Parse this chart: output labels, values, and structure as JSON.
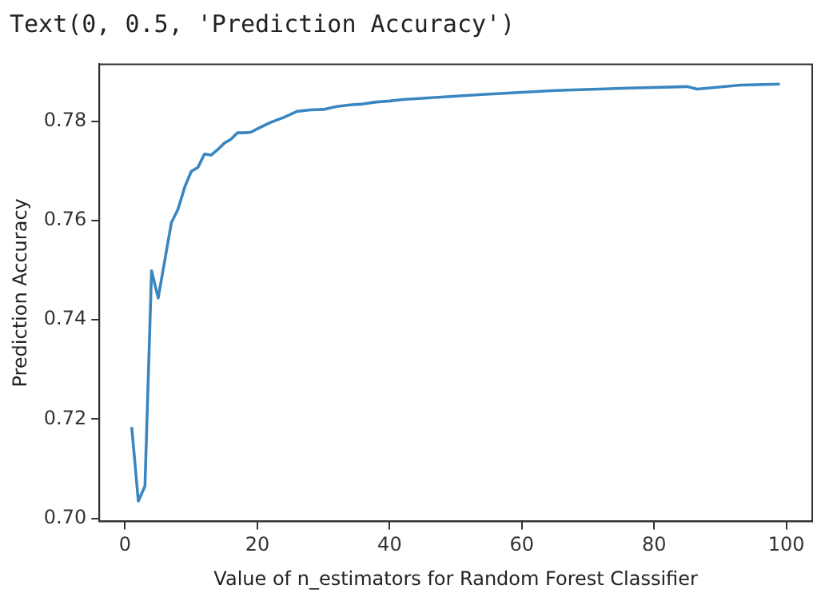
{
  "chart_data": {
    "type": "line",
    "xlabel": "Value of n_estimators for Random Forest Classifier",
    "ylabel": "Prediction Accuracy",
    "annotations": [
      "Text(0, 0.5, 'Prediction Accuracy')"
    ],
    "series": [
      {
        "color": "#3a86c0",
        "x": [
          1,
          2,
          3,
          4,
          5,
          6,
          7,
          8,
          9,
          10,
          11,
          12,
          13,
          14,
          15,
          16,
          17,
          18,
          19,
          20,
          22,
          24,
          26,
          28,
          30,
          32,
          34,
          36,
          38,
          40,
          42,
          54,
          65,
          76,
          85,
          86.5,
          93,
          99
        ],
        "values": [
          0.7184,
          0.7035,
          0.7065,
          0.7499,
          0.7444,
          0.752,
          0.7596,
          0.7623,
          0.7667,
          0.7699,
          0.7707,
          0.7734,
          0.7732,
          0.7743,
          0.7756,
          0.7764,
          0.7777,
          0.7777,
          0.7778,
          0.7785,
          0.7798,
          0.7808,
          0.782,
          0.7823,
          0.7824,
          0.783,
          0.7833,
          0.7835,
          0.7839,
          0.7841,
          0.7844,
          0.7854,
          0.7862,
          0.7867,
          0.787,
          0.7865,
          0.7873,
          0.7875
        ]
      }
    ],
    "xlim": [
      -3.9,
      103.9
    ],
    "xticks": [
      0,
      20,
      40,
      60,
      80,
      100
    ],
    "ylim": [
      0.6994,
      0.7915
    ],
    "yticks": [
      {
        "value": 0.7,
        "label": "0.70"
      },
      {
        "value": 0.72,
        "label": "0.72"
      },
      {
        "value": 0.74,
        "label": "0.74"
      },
      {
        "value": 0.76,
        "label": "0.76"
      },
      {
        "value": 0.78,
        "label": "0.78"
      }
    ],
    "grid": false,
    "legend": false,
    "marker": "none",
    "line_style": "solid"
  }
}
